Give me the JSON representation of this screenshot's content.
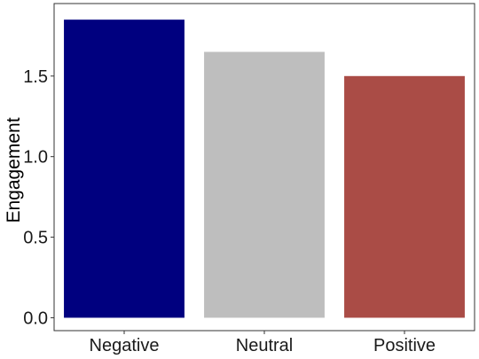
{
  "chart_data": {
    "type": "bar",
    "title": "",
    "xlabel": "",
    "ylabel": "Engagement",
    "categories": [
      "Negative",
      "Neutral",
      "Positive"
    ],
    "values": [
      1.85,
      1.65,
      1.5
    ],
    "colors": [
      "#00007F",
      "#BEBEBE",
      "#AA4C46"
    ],
    "ylim": [
      -0.08,
      1.95
    ],
    "yticks": [
      0.0,
      0.5,
      1.0,
      1.5
    ],
    "ytick_labels": [
      "0.0",
      "0.5",
      "1.0",
      "1.5"
    ],
    "grid": false,
    "legend": "none"
  }
}
